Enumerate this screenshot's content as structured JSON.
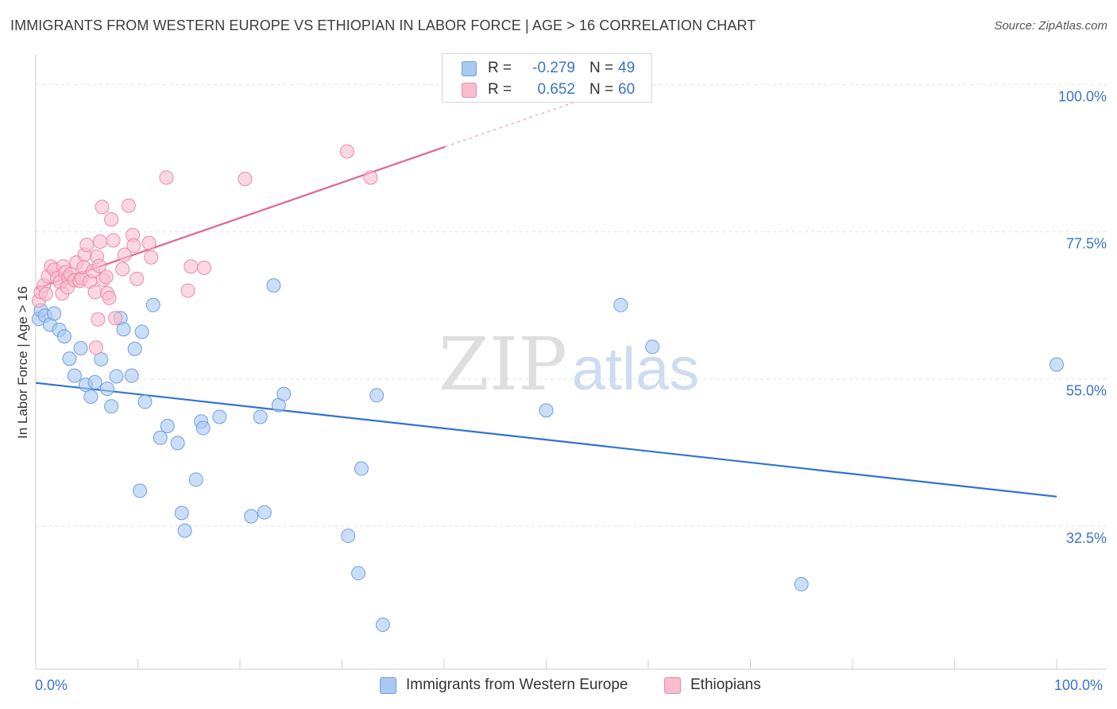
{
  "header": {
    "title": "IMMIGRANTS FROM WESTERN EUROPE VS ETHIOPIAN IN LABOR FORCE | AGE > 16 CORRELATION CHART",
    "source": "Source: ZipAtlas.com"
  },
  "watermark": {
    "zip": "ZIP",
    "atlas": "atlas"
  },
  "legend": {
    "series": [
      {
        "r_label": "R =",
        "r_value": "-0.279",
        "n_label": "N =",
        "n_value": "49",
        "color": "#a9c8f2",
        "border": "#6f9fe0"
      },
      {
        "r_label": "R =",
        "r_value": "0.652",
        "n_label": "N =",
        "n_value": "60",
        "color": "#f8bccd",
        "border": "#ea8aa8"
      }
    ]
  },
  "bottom_legend": {
    "items": [
      {
        "label": "Immigrants from Western Europe",
        "color": "#a9c8f2",
        "border": "#6f9fe0"
      },
      {
        "label": "Ethiopians",
        "color": "#f8bccd",
        "border": "#ea8aa8"
      }
    ]
  },
  "chart_data": {
    "type": "scatter",
    "title": "IMMIGRANTS FROM WESTERN EUROPE VS ETHIOPIAN IN LABOR FORCE | AGE > 16 CORRELATION CHART",
    "xlabel": "",
    "ylabel": "In Labor Force | Age > 16",
    "xlim": [
      0,
      100
    ],
    "ylim": [
      10.6,
      104.2
    ],
    "x_tick_labels": {
      "left": "0.0%",
      "right": "100.0%"
    },
    "y_ticks": [
      {
        "value": 100.0,
        "label": "100.0%"
      },
      {
        "value": 77.5,
        "label": "77.5%"
      },
      {
        "value": 55.0,
        "label": "55.0%"
      },
      {
        "value": 32.5,
        "label": "32.5%"
      }
    ],
    "grid": true,
    "series": [
      {
        "name": "Immigrants from Western Europe",
        "color": "#a9c8f2",
        "stroke": "#6f9fe0",
        "line_color": "#2f72d6",
        "trend": {
          "x": [
            0,
            100
          ],
          "y": [
            54.4,
            37.0
          ]
        },
        "points": [
          {
            "x": 0.3,
            "y": 64.2
          },
          {
            "x": 0.5,
            "y": 65.5
          },
          {
            "x": 0.9,
            "y": 64.7
          },
          {
            "x": 1.4,
            "y": 63.3
          },
          {
            "x": 1.8,
            "y": 65.0
          },
          {
            "x": 2.3,
            "y": 62.5
          },
          {
            "x": 2.8,
            "y": 61.5
          },
          {
            "x": 3.3,
            "y": 58.1
          },
          {
            "x": 3.8,
            "y": 55.5
          },
          {
            "x": 4.4,
            "y": 59.7
          },
          {
            "x": 4.9,
            "y": 54.1
          },
          {
            "x": 5.4,
            "y": 52.3
          },
          {
            "x": 5.8,
            "y": 54.5
          },
          {
            "x": 6.4,
            "y": 58.0
          },
          {
            "x": 7.0,
            "y": 53.5
          },
          {
            "x": 7.4,
            "y": 50.8
          },
          {
            "x": 7.9,
            "y": 55.4
          },
          {
            "x": 8.3,
            "y": 64.3
          },
          {
            "x": 8.6,
            "y": 62.6
          },
          {
            "x": 9.4,
            "y": 55.5
          },
          {
            "x": 9.7,
            "y": 59.6
          },
          {
            "x": 10.4,
            "y": 62.2
          },
          {
            "x": 10.7,
            "y": 51.5
          },
          {
            "x": 11.5,
            "y": 66.3
          },
          {
            "x": 12.2,
            "y": 46.0
          },
          {
            "x": 12.9,
            "y": 47.8
          },
          {
            "x": 13.9,
            "y": 45.2
          },
          {
            "x": 16.2,
            "y": 48.5
          },
          {
            "x": 16.4,
            "y": 47.5
          },
          {
            "x": 18.0,
            "y": 49.2
          },
          {
            "x": 14.3,
            "y": 34.5
          },
          {
            "x": 14.6,
            "y": 31.8
          },
          {
            "x": 15.7,
            "y": 39.6
          },
          {
            "x": 10.2,
            "y": 37.9
          },
          {
            "x": 21.1,
            "y": 34.0
          },
          {
            "x": 22.4,
            "y": 34.6
          },
          {
            "x": 22.0,
            "y": 49.2
          },
          {
            "x": 23.8,
            "y": 51.0
          },
          {
            "x": 24.3,
            "y": 52.7
          },
          {
            "x": 23.3,
            "y": 69.3
          },
          {
            "x": 30.6,
            "y": 31.0
          },
          {
            "x": 31.6,
            "y": 25.3
          },
          {
            "x": 31.9,
            "y": 41.3
          },
          {
            "x": 33.4,
            "y": 52.5
          },
          {
            "x": 34.0,
            "y": 17.4
          },
          {
            "x": 50.0,
            "y": 50.2
          },
          {
            "x": 57.3,
            "y": 66.3
          },
          {
            "x": 60.4,
            "y": 59.9
          },
          {
            "x": 75.0,
            "y": 23.6
          },
          {
            "x": 100.0,
            "y": 57.2
          }
        ]
      },
      {
        "name": "Ethiopians",
        "color": "#f8bccd",
        "stroke": "#ea8aa8",
        "line_color": "#e06790",
        "trend": {
          "x": [
            0,
            40.1
          ],
          "y": [
            68.8,
            90.5
          ]
        },
        "trend_dashed": {
          "x": [
            40.1,
            54.0
          ],
          "y": [
            90.5,
            98.0
          ]
        },
        "points": [
          {
            "x": 0.3,
            "y": 67.0
          },
          {
            "x": 0.5,
            "y": 68.3
          },
          {
            "x": 0.8,
            "y": 69.3
          },
          {
            "x": 1.0,
            "y": 68.0
          },
          {
            "x": 1.2,
            "y": 70.7
          },
          {
            "x": 1.5,
            "y": 72.2
          },
          {
            "x": 1.8,
            "y": 71.7
          },
          {
            "x": 2.1,
            "y": 70.4
          },
          {
            "x": 2.4,
            "y": 69.8
          },
          {
            "x": 2.7,
            "y": 72.2
          },
          {
            "x": 2.9,
            "y": 71.3
          },
          {
            "x": 3.2,
            "y": 70.5
          },
          {
            "x": 3.4,
            "y": 71.0
          },
          {
            "x": 2.6,
            "y": 68.1
          },
          {
            "x": 3.1,
            "y": 69.0
          },
          {
            "x": 3.8,
            "y": 70.1
          },
          {
            "x": 4.0,
            "y": 72.8
          },
          {
            "x": 4.3,
            "y": 70.0
          },
          {
            "x": 4.5,
            "y": 70.4
          },
          {
            "x": 4.8,
            "y": 74.0
          },
          {
            "x": 4.7,
            "y": 72.1
          },
          {
            "x": 5.0,
            "y": 75.5
          },
          {
            "x": 5.3,
            "y": 69.9
          },
          {
            "x": 5.6,
            "y": 71.5
          },
          {
            "x": 5.8,
            "y": 68.3
          },
          {
            "x": 6.0,
            "y": 73.7
          },
          {
            "x": 6.2,
            "y": 72.3
          },
          {
            "x": 6.3,
            "y": 76.0
          },
          {
            "x": 6.1,
            "y": 64.1
          },
          {
            "x": 5.9,
            "y": 59.8
          },
          {
            "x": 6.6,
            "y": 70.2
          },
          {
            "x": 6.5,
            "y": 81.3
          },
          {
            "x": 6.9,
            "y": 70.6
          },
          {
            "x": 7.0,
            "y": 68.1
          },
          {
            "x": 7.2,
            "y": 67.4
          },
          {
            "x": 7.4,
            "y": 79.4
          },
          {
            "x": 7.6,
            "y": 76.2
          },
          {
            "x": 7.8,
            "y": 64.3
          },
          {
            "x": 8.5,
            "y": 71.8
          },
          {
            "x": 8.7,
            "y": 74.0
          },
          {
            "x": 9.1,
            "y": 81.5
          },
          {
            "x": 9.5,
            "y": 77.0
          },
          {
            "x": 9.6,
            "y": 75.4
          },
          {
            "x": 9.9,
            "y": 70.3
          },
          {
            "x": 11.1,
            "y": 75.8
          },
          {
            "x": 11.3,
            "y": 73.6
          },
          {
            "x": 12.8,
            "y": 85.8
          },
          {
            "x": 14.9,
            "y": 68.5
          },
          {
            "x": 15.2,
            "y": 72.2
          },
          {
            "x": 16.5,
            "y": 72.0
          },
          {
            "x": 20.5,
            "y": 85.6
          },
          {
            "x": 30.5,
            "y": 89.8
          },
          {
            "x": 32.8,
            "y": 85.8
          }
        ]
      }
    ]
  }
}
